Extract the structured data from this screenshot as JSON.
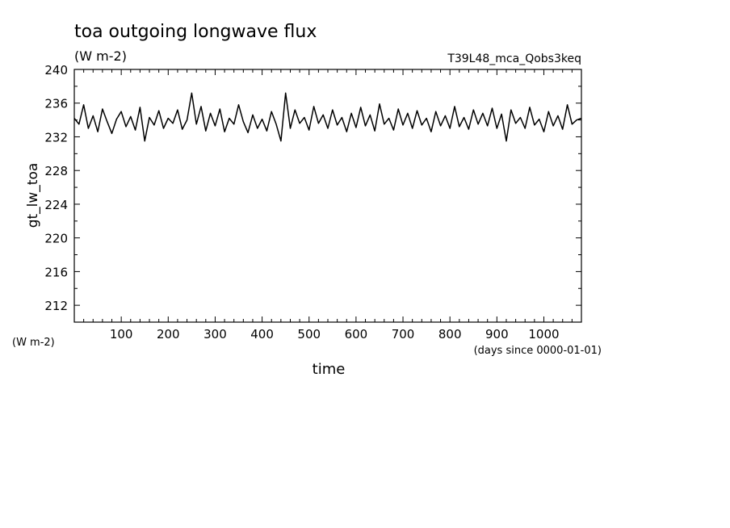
{
  "chart_data": {
    "type": "line",
    "title": "toa outgoing longwave flux",
    "units": "(W m-2)",
    "experiment": "T39L48_mca_Qobs3keq",
    "ylabel": "gt_lw_toa",
    "y_units_label": "(W m-2)",
    "xlabel": "time",
    "x_units_label": "(days since 0000-01-01)",
    "xlim": [
      0,
      1080
    ],
    "ylim": [
      210,
      240
    ],
    "x_ticks": [
      100,
      200,
      300,
      400,
      500,
      600,
      700,
      800,
      900,
      1000
    ],
    "y_ticks": [
      212,
      216,
      220,
      224,
      228,
      232,
      236,
      240
    ],
    "grid": false,
    "line_color": "#000000",
    "series": [
      {
        "x": [
          0,
          10,
          20,
          30,
          40,
          50,
          60,
          70,
          80,
          90,
          100,
          110,
          120,
          130,
          140,
          150,
          160,
          170,
          180,
          190,
          200,
          210,
          220,
          230,
          240,
          250,
          260,
          270,
          280,
          290,
          300,
          310,
          320,
          330,
          340,
          350,
          360,
          370,
          380,
          390,
          400,
          410,
          420,
          430,
          440,
          450,
          460,
          470,
          480,
          490,
          500,
          510,
          520,
          530,
          540,
          550,
          560,
          570,
          580,
          590,
          600,
          610,
          620,
          630,
          640,
          650,
          660,
          670,
          680,
          690,
          700,
          710,
          720,
          730,
          740,
          750,
          760,
          770,
          780,
          790,
          800,
          810,
          820,
          830,
          840,
          850,
          860,
          870,
          880,
          890,
          900,
          910,
          920,
          930,
          940,
          950,
          960,
          970,
          980,
          990,
          1000,
          1010,
          1020,
          1030,
          1040,
          1050,
          1060,
          1070,
          1080
        ],
        "y": [
          234.2,
          233.5,
          235.8,
          233.0,
          234.5,
          232.6,
          235.3,
          233.8,
          232.4,
          234.1,
          235.0,
          233.2,
          234.4,
          232.8,
          235.5,
          231.5,
          234.3,
          233.4,
          235.1,
          233.0,
          234.2,
          233.6,
          235.2,
          232.9,
          234.0,
          237.2,
          233.5,
          235.6,
          232.7,
          234.8,
          233.3,
          235.3,
          232.6,
          234.2,
          233.5,
          235.8,
          233.8,
          232.5,
          234.6,
          233.0,
          234.1,
          232.7,
          235.0,
          233.5,
          231.5,
          237.2,
          233.0,
          235.2,
          233.6,
          234.3,
          232.8,
          235.6,
          233.6,
          234.6,
          233.0,
          235.2,
          233.4,
          234.3,
          232.6,
          234.8,
          233.1,
          235.5,
          233.3,
          234.6,
          232.7,
          235.9,
          233.5,
          234.2,
          232.8,
          235.3,
          233.4,
          234.8,
          233.0,
          235.1,
          233.4,
          234.2,
          232.6,
          235.0,
          233.3,
          234.5,
          233.0,
          235.6,
          233.2,
          234.3,
          232.9,
          235.2,
          233.5,
          234.8,
          233.3,
          235.4,
          233.0,
          234.7,
          231.5,
          235.2,
          233.6,
          234.3,
          233.0,
          235.5,
          233.4,
          234.1,
          232.6,
          235.0,
          233.3,
          234.5,
          232.9,
          235.8,
          233.5,
          234.0,
          234.2
        ]
      }
    ]
  }
}
